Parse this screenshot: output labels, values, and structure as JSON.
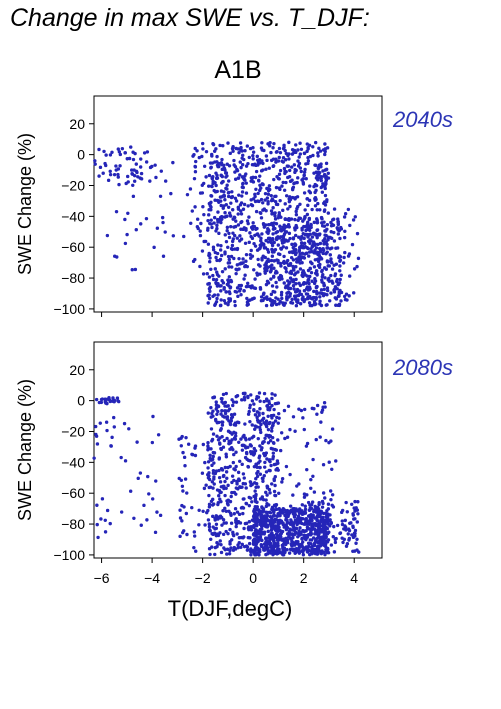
{
  "title": "Change in max SWE vs. T_DJF:",
  "scenario": "A1B",
  "panel_labels": [
    "2040s",
    "2080s"
  ],
  "ylabel": "SWE Change (%)",
  "xlabel": "T(DJF,degC)",
  "colors": {
    "points": "#2525b8",
    "panel_label": "#2c35b5"
  },
  "chart_data": [
    {
      "type": "scatter",
      "panel": "2040s",
      "title": "",
      "xlabel": "",
      "ylabel": "SWE Change (%)",
      "xlim": [
        -6.3,
        5.1
      ],
      "ylim": [
        -102,
        38
      ],
      "xticks": [
        -6,
        -4,
        -2,
        0,
        2,
        4
      ],
      "yticks": [
        20,
        0,
        -20,
        -40,
        -60,
        -80,
        -100
      ],
      "grid": false,
      "x_tick_labels_shown": false,
      "series": [
        {
          "x": [],
          "y": []
        }
      ],
      "point_cloud": [
        {
          "x": [
            -6.3,
            -4.0
          ],
          "y": [
            -20,
            5
          ],
          "n": 55
        },
        {
          "x": [
            -5.8,
            -2.5
          ],
          "y": [
            -75,
            -5
          ],
          "n": 35
        },
        {
          "x": [
            -2.5,
            -1.8
          ],
          "y": [
            -80,
            8
          ],
          "n": 40
        },
        {
          "x": [
            -1.8,
            3.0
          ],
          "y": [
            -98,
            8
          ],
          "n": 1050
        },
        {
          "x": [
            0.5,
            3.5
          ],
          "y": [
            -98,
            -40
          ],
          "n": 260
        },
        {
          "x": [
            3.0,
            4.2
          ],
          "y": [
            -95,
            -35
          ],
          "n": 45
        }
      ]
    },
    {
      "type": "scatter",
      "panel": "2080s",
      "title": "",
      "xlabel": "T(DJF,degC)",
      "ylabel": "SWE Change (%)",
      "xlim": [
        -6.3,
        5.1
      ],
      "ylim": [
        -102,
        38
      ],
      "xticks": [
        -6,
        -4,
        -2,
        0,
        2,
        4
      ],
      "yticks": [
        20,
        0,
        -20,
        -40,
        -60,
        -80,
        -100
      ],
      "grid": false,
      "x_tick_labels_shown": true,
      "series": [
        {
          "x": [],
          "y": []
        }
      ],
      "point_cloud": [
        {
          "x": [
            -6.3,
            -5.3
          ],
          "y": [
            -2,
            2
          ],
          "n": 22
        },
        {
          "x": [
            -6.3,
            -3.6
          ],
          "y": [
            -90,
            -10
          ],
          "n": 45
        },
        {
          "x": [
            -3.0,
            -1.8
          ],
          "y": [
            -98,
            -20
          ],
          "n": 45
        },
        {
          "x": [
            -1.8,
            1.0
          ],
          "y": [
            -100,
            5
          ],
          "n": 600
        },
        {
          "x": [
            0.0,
            3.0
          ],
          "y": [
            -100,
            -70
          ],
          "n": 650
        },
        {
          "x": [
            2.0,
            4.2
          ],
          "y": [
            -100,
            -65
          ],
          "n": 120
        },
        {
          "x": [
            0.0,
            3.3
          ],
          "y": [
            -80,
            -1
          ],
          "n": 120
        }
      ]
    }
  ]
}
